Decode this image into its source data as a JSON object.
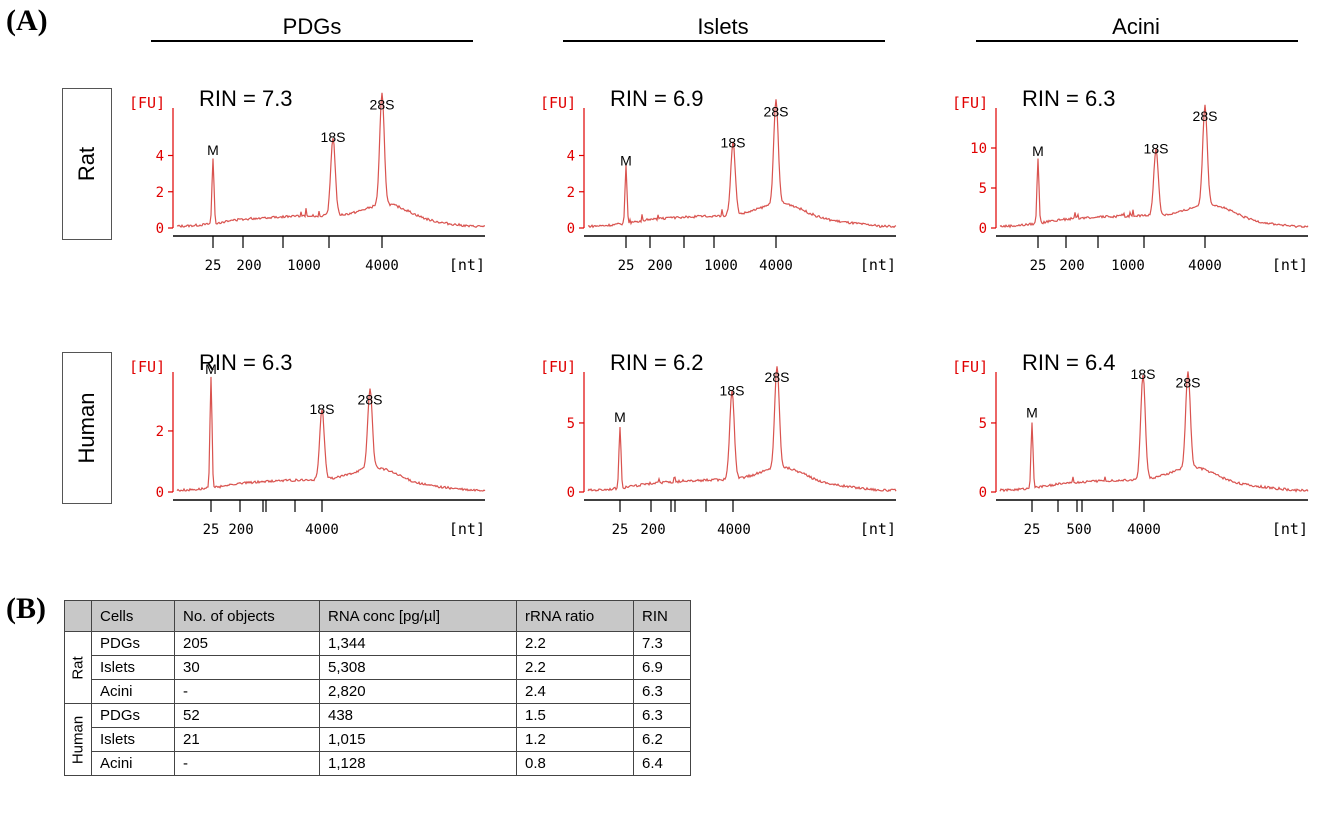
{
  "panel_labels": {
    "a": "(A)",
    "b": "(B)"
  },
  "columns": [
    "PDGs",
    "Islets",
    "Acini"
  ],
  "rows": [
    "Rat",
    "Human"
  ],
  "colors": {
    "trace": "#d9534f",
    "axis_label": "#e00000",
    "axis": "#000000",
    "header_bg": "#c8c8c8"
  },
  "chart_data": [
    {
      "type": "line",
      "title": "RIN = 7.3",
      "ylabel": "[FU]",
      "xlabel": "[nt]",
      "yticks": [
        0,
        2,
        4
      ],
      "ylim": [
        0,
        6.4
      ],
      "xticks": [
        "25",
        "200",
        "1000",
        "4000"
      ],
      "peaks": [
        {
          "label": "M",
          "value": 3.6
        },
        {
          "label": "18S",
          "value": 4.3
        },
        {
          "label": "28S",
          "value": 6.1
        }
      ]
    },
    {
      "type": "line",
      "title": "RIN = 6.9",
      "ylabel": "[FU]",
      "xlabel": "[nt]",
      "yticks": [
        0,
        2,
        4
      ],
      "ylim": [
        0,
        6.4
      ],
      "xticks": [
        "25",
        "200",
        "1000",
        "4000"
      ],
      "peaks": [
        {
          "label": "M",
          "value": 3.0
        },
        {
          "label": "18S",
          "value": 4.0
        },
        {
          "label": "28S",
          "value": 5.7
        }
      ]
    },
    {
      "type": "line",
      "title": "RIN = 6.3",
      "ylabel": "[FU]",
      "xlabel": "[nt]",
      "yticks": [
        0,
        5,
        10
      ],
      "ylim": [
        0,
        14.5
      ],
      "xticks": [
        "25",
        "200",
        "1000",
        "4000"
      ],
      "peaks": [
        {
          "label": "M",
          "value": 8.0
        },
        {
          "label": "18S",
          "value": 8.3
        },
        {
          "label": "28S",
          "value": 12.4
        }
      ]
    },
    {
      "type": "line",
      "title": "RIN = 6.3",
      "ylabel": "[FU]",
      "xlabel": "[nt]",
      "yticks": [
        0,
        2
      ],
      "ylim": [
        0,
        3.8
      ],
      "xticks": [
        "25",
        "200",
        "4000"
      ],
      "peaks": [
        {
          "label": "M",
          "value": 3.6
        },
        {
          "label": "18S",
          "value": 2.3
        },
        {
          "label": "28S",
          "value": 2.6
        }
      ]
    },
    {
      "type": "line",
      "title": "RIN = 6.2",
      "ylabel": "[FU]",
      "xlabel": "[nt]",
      "yticks": [
        0,
        5
      ],
      "ylim": [
        0,
        8.4
      ],
      "xticks": [
        "25",
        "200",
        "4000"
      ],
      "peaks": [
        {
          "label": "M",
          "value": 4.5
        },
        {
          "label": "18S",
          "value": 6.4
        },
        {
          "label": "28S",
          "value": 7.4
        }
      ]
    },
    {
      "type": "line",
      "title": "RIN = 6.4",
      "ylabel": "[FU]",
      "xlabel": "[nt]",
      "yticks": [
        0,
        5
      ],
      "ylim": [
        0,
        8.4
      ],
      "xticks": [
        "25",
        "500",
        "4000"
      ],
      "peaks": [
        {
          "label": "M",
          "value": 4.8
        },
        {
          "label": "18S",
          "value": 7.6
        },
        {
          "label": "28S",
          "value": 7.0
        }
      ]
    }
  ],
  "table": {
    "headers": [
      "",
      "Cells",
      "No. of objects",
      "RNA conc [pg/µl]",
      "rRNA ratio",
      "RIN"
    ],
    "groups": [
      {
        "species": "Rat",
        "rows": [
          [
            "PDGs",
            "205",
            "1,344",
            "2.2",
            "7.3"
          ],
          [
            "Islets",
            "30",
            "5,308",
            "2.2",
            "6.9"
          ],
          [
            "Acini",
            "-",
            "2,820",
            "2.4",
            "6.3"
          ]
        ]
      },
      {
        "species": "Human",
        "rows": [
          [
            "PDGs",
            "52",
            "438",
            "1.5",
            "6.3"
          ],
          [
            "Islets",
            "21",
            "1,015",
            "1.2",
            "6.2"
          ],
          [
            "Acini",
            "-",
            "1,128",
            "0.8",
            "6.4"
          ]
        ]
      }
    ]
  }
}
